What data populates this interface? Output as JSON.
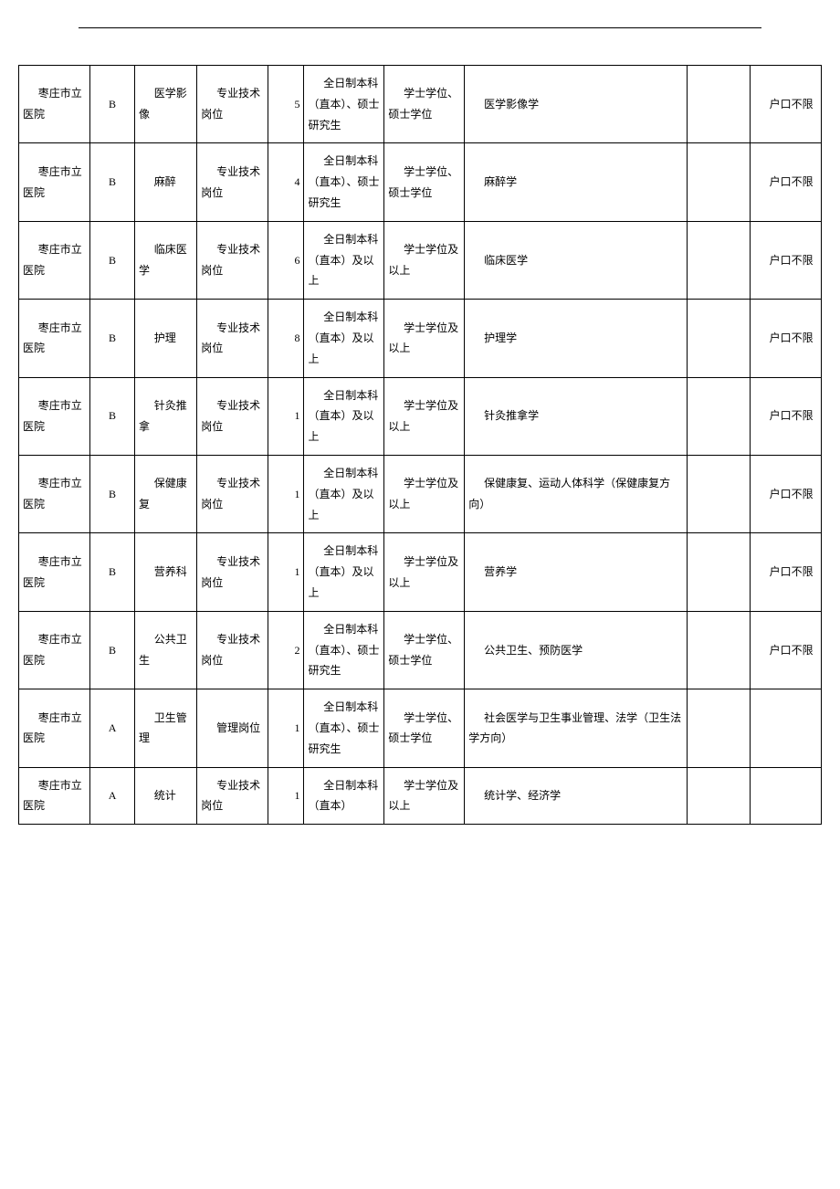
{
  "table": {
    "rows": [
      {
        "institution": "枣庄市立医院",
        "category": "B",
        "position": "医学影像",
        "post_type": "专业技术岗位",
        "count": "5",
        "education": "全日制本科（直本）、硕士研究生",
        "degree": "学士学位、硕士学位",
        "major": "医学影像学",
        "other": "",
        "note": "户口不限"
      },
      {
        "institution": "枣庄市立医院",
        "category": "B",
        "position": "麻醉",
        "post_type": "专业技术岗位",
        "count": "4",
        "education": "全日制本科（直本）、硕士研究生",
        "degree": "学士学位、硕士学位",
        "major": "麻醉学",
        "other": "",
        "note": "户口不限"
      },
      {
        "institution": "枣庄市立医院",
        "category": "B",
        "position": "临床医学",
        "post_type": "专业技术岗位",
        "count": "6",
        "education": "全日制本科（直本）及以上",
        "degree": "学士学位及以上",
        "major": "临床医学",
        "other": "",
        "note": "户口不限"
      },
      {
        "institution": "枣庄市立医院",
        "category": "B",
        "position": "护理",
        "post_type": "专业技术岗位",
        "count": "8",
        "education": "全日制本科（直本）及以上",
        "degree": "学士学位及以上",
        "major": "护理学",
        "other": "",
        "note": "户口不限"
      },
      {
        "institution": "枣庄市立医院",
        "category": "B",
        "position": "针灸推拿",
        "post_type": "专业技术岗位",
        "count": "1",
        "education": "全日制本科（直本）及以上",
        "degree": "学士学位及以上",
        "major": "针灸推拿学",
        "other": "",
        "note": "户口不限"
      },
      {
        "institution": "枣庄市立医院",
        "category": "B",
        "position": "保健康复",
        "post_type": "专业技术岗位",
        "count": "1",
        "education": "全日制本科（直本）及以上",
        "degree": "学士学位及以上",
        "major": "保健康复、运动人体科学（保健康复方向）",
        "other": "",
        "note": "户口不限"
      },
      {
        "institution": "枣庄市立医院",
        "category": "B",
        "position": "营养科",
        "post_type": "专业技术岗位",
        "count": "1",
        "education": "全日制本科（直本）及以上",
        "degree": "学士学位及以上",
        "major": "营养学",
        "other": "",
        "note": "户口不限"
      },
      {
        "institution": "枣庄市立医院",
        "category": "B",
        "position": "公共卫生",
        "post_type": "专业技术岗位",
        "count": "2",
        "education": "全日制本科（直本）、硕士研究生",
        "degree": "学士学位、硕士学位",
        "major": "公共卫生、预防医学",
        "other": "",
        "note": "户口不限"
      },
      {
        "institution": "枣庄市立医院",
        "category": "A",
        "position": "卫生管理",
        "post_type": "管理岗位",
        "count": "1",
        "education": "全日制本科（直本）、硕士研究生",
        "degree": "学士学位、硕士学位",
        "major": "社会医学与卫生事业管理、法学（卫生法学方向）",
        "other": "",
        "note": ""
      },
      {
        "institution": "枣庄市立医院",
        "category": "A",
        "position": "统计",
        "post_type": "专业技术岗位",
        "count": "1",
        "education": "全日制本科（直本）",
        "degree": "学士学位及以上",
        "major": "统计学、经济学",
        "other": "",
        "note": ""
      }
    ]
  }
}
